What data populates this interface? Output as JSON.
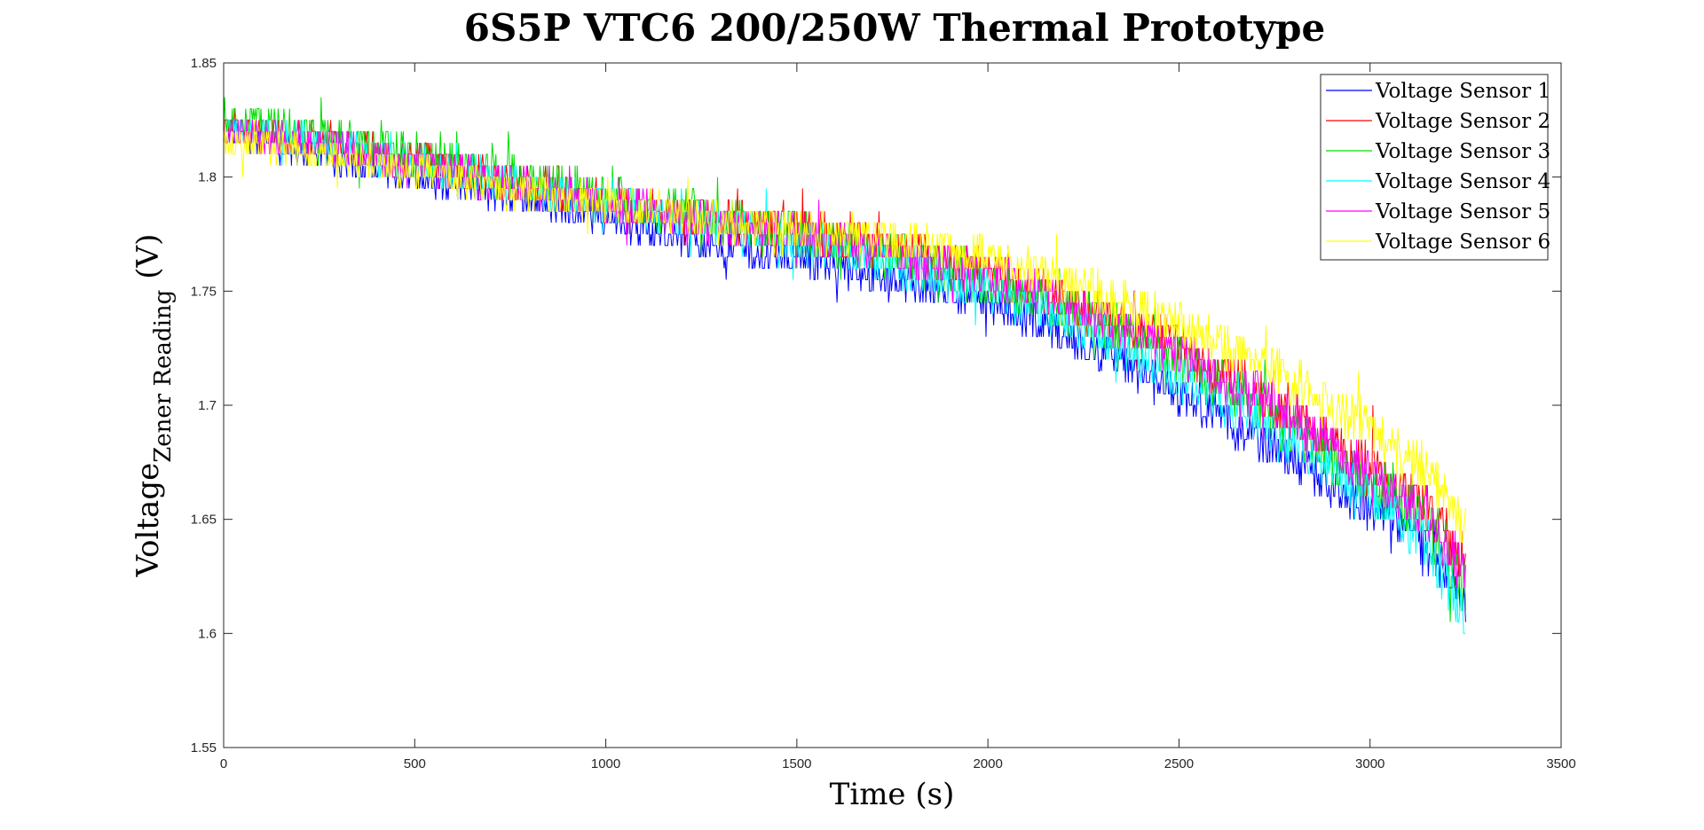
{
  "chart_data": {
    "type": "line",
    "title": "6S5P VTC6 200/250W Thermal Prototype",
    "xlabel": "Time (s)",
    "ylabel": {
      "main": "Voltage",
      "subscript": "Zener Reading",
      "unit": "(V)"
    },
    "xlim": [
      0,
      3500
    ],
    "ylim": [
      1.55,
      1.85
    ],
    "xticks": [
      0,
      500,
      1000,
      1500,
      2000,
      2500,
      3000,
      3500
    ],
    "yticks": [
      1.55,
      1.6,
      1.65,
      1.7,
      1.75,
      1.8,
      1.85
    ],
    "ytick_labels": [
      "1.55",
      "1.6",
      "1.65",
      "1.7",
      "1.75",
      "1.8",
      "1.85"
    ],
    "grid": false,
    "legend_position": "top-right",
    "x": [
      0,
      250,
      500,
      750,
      1000,
      1250,
      1500,
      1750,
      2000,
      2250,
      2500,
      2750,
      3000,
      3150,
      3250
    ],
    "series": [
      {
        "name": "Voltage Sensor 1",
        "color": "#0000ff",
        "noise": 0.006,
        "values": [
          1.82,
          1.81,
          1.8,
          1.792,
          1.782,
          1.77,
          1.765,
          1.755,
          1.745,
          1.728,
          1.705,
          1.68,
          1.655,
          1.638,
          1.615
        ]
      },
      {
        "name": "Voltage Sensor 2",
        "color": "#ff0000",
        "noise": 0.007,
        "values": [
          1.822,
          1.815,
          1.808,
          1.798,
          1.79,
          1.782,
          1.777,
          1.768,
          1.758,
          1.742,
          1.725,
          1.7,
          1.672,
          1.655,
          1.63
        ]
      },
      {
        "name": "Voltage Sensor 3",
        "color": "#00dd00",
        "noise": 0.008,
        "values": [
          1.826,
          1.819,
          1.81,
          1.8,
          1.791,
          1.783,
          1.776,
          1.766,
          1.755,
          1.74,
          1.72,
          1.695,
          1.665,
          1.648,
          1.622
        ]
      },
      {
        "name": "Voltage Sensor 4",
        "color": "#00ffff",
        "noise": 0.007,
        "values": [
          1.822,
          1.815,
          1.806,
          1.797,
          1.789,
          1.78,
          1.772,
          1.762,
          1.75,
          1.735,
          1.712,
          1.688,
          1.66,
          1.64,
          1.605
        ]
      },
      {
        "name": "Voltage Sensor 5",
        "color": "#ff00ff",
        "noise": 0.007,
        "values": [
          1.82,
          1.814,
          1.806,
          1.797,
          1.789,
          1.781,
          1.775,
          1.767,
          1.757,
          1.742,
          1.723,
          1.7,
          1.67,
          1.652,
          1.625
        ]
      },
      {
        "name": "Voltage Sensor 6",
        "color": "#ffff00",
        "noise": 0.007,
        "values": [
          1.816,
          1.81,
          1.803,
          1.795,
          1.788,
          1.782,
          1.777,
          1.773,
          1.765,
          1.752,
          1.735,
          1.715,
          1.69,
          1.672,
          1.645
        ]
      }
    ]
  }
}
